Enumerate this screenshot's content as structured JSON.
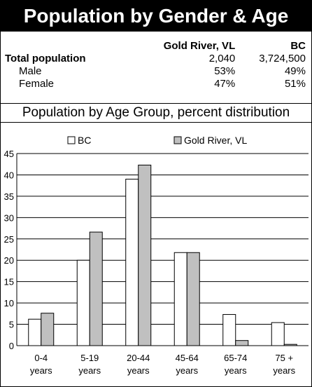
{
  "header": {
    "title": "Population by Gender & Age"
  },
  "stats_table": {
    "columns": [
      "",
      "Gold River, VL",
      "BC"
    ],
    "rows": [
      {
        "label": "Total population",
        "gold_river": "2,040",
        "bc": "3,724,500"
      },
      {
        "label": "Male",
        "gold_river": "53%",
        "bc": "49%"
      },
      {
        "label": "Female",
        "gold_river": "47%",
        "bc": "51%"
      }
    ]
  },
  "section": {
    "title": "Population by Age Group, percent distribution"
  },
  "chart_data": {
    "type": "bar",
    "categories": [
      "0-4 years",
      "5-19 years",
      "20-44 years",
      "45-64 years",
      "65-74 years",
      "75 + years"
    ],
    "category_lines": [
      [
        "0-4",
        "years"
      ],
      [
        "5-19",
        "years"
      ],
      [
        "20-44",
        "years"
      ],
      [
        "45-64",
        "years"
      ],
      [
        "65-74",
        "years"
      ],
      [
        "75 +",
        "years"
      ]
    ],
    "series": [
      {
        "name": "BC",
        "values": [
          6.2,
          20.0,
          39.0,
          21.8,
          7.3,
          5.4
        ],
        "color": "#ffffff"
      },
      {
        "name": "Gold River, VL",
        "values": [
          7.6,
          26.6,
          42.3,
          21.8,
          1.2,
          0.3
        ],
        "color": "#c0c0c0"
      }
    ],
    "ylim": [
      0,
      45
    ],
    "yticks": [
      0,
      5,
      10,
      15,
      20,
      25,
      30,
      35,
      40,
      45
    ],
    "grid": true,
    "legend": "top"
  }
}
